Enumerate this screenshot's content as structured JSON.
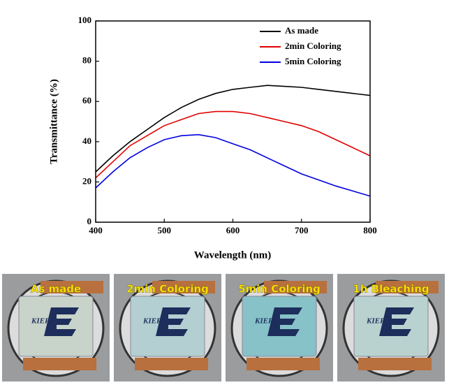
{
  "chart_data": {
    "type": "line",
    "x_label": "Wavelength (nm)",
    "y_label": "Transmittance (%)",
    "x": [
      400,
      425,
      450,
      475,
      500,
      525,
      550,
      575,
      600,
      625,
      650,
      675,
      700,
      725,
      750,
      775,
      800
    ],
    "series": [
      {
        "name": "As made",
        "color": "#000000",
        "values": [
          25,
          33,
          40,
          46,
          52,
          57,
          61,
          64,
          66,
          67,
          68,
          67.5,
          67,
          66,
          65,
          64,
          63
        ]
      },
      {
        "name": "2min Coloring",
        "color": "#e00000",
        "values": [
          22,
          30,
          38,
          43,
          48,
          51,
          54,
          55,
          55,
          54,
          52,
          50,
          48,
          45,
          41,
          37,
          33
        ]
      },
      {
        "name": "5min Coloring",
        "color": "#0000e0",
        "values": [
          17,
          25,
          32,
          37,
          41,
          43,
          43.5,
          42,
          39,
          36,
          32,
          28,
          24,
          21,
          18,
          15.5,
          13
        ]
      }
    ],
    "xlim": [
      400,
      800
    ],
    "xticks": [
      400,
      500,
      600,
      700,
      800
    ],
    "ylim": [
      0,
      100
    ],
    "yticks": [
      0,
      20,
      40,
      60,
      80,
      100
    ],
    "legend": "upper-right"
  },
  "photos": [
    {
      "label": "As made",
      "logo": "KIER",
      "glass": "#c8d3c9"
    },
    {
      "label": "2min Coloring",
      "logo": "KIER",
      "glass": "#b3cfd1"
    },
    {
      "label": "5min Coloring",
      "logo": "KIER",
      "glass": "#86c2c8"
    },
    {
      "label": "1h Bleaching",
      "logo": "KIER",
      "glass": "#b9d2cf"
    }
  ]
}
